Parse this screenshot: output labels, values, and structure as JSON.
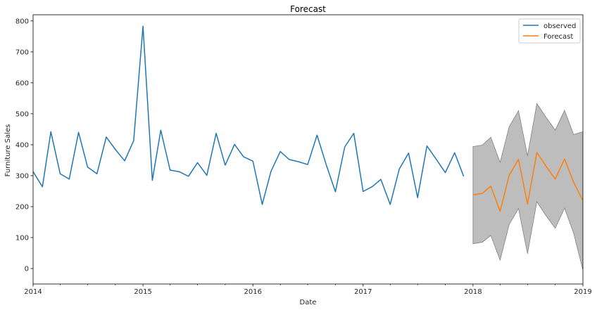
{
  "chart_data": {
    "type": "line",
    "title": "Forecast",
    "xlabel": "Date",
    "ylabel": "Furniture Sales",
    "xlim": [
      "2014-01-01",
      "2019-01-01"
    ],
    "ylim": [
      -50,
      820
    ],
    "x_ticks": [
      "2014",
      "2015",
      "2016",
      "2017",
      "2018",
      "2019"
    ],
    "y_ticks": [
      0,
      100,
      200,
      300,
      400,
      500,
      600,
      700,
      800
    ],
    "grid": false,
    "legend_position": "top-right",
    "colors": {
      "observed": "#1f77b4",
      "forecast": "#ff7f0e",
      "confidence_band": "#bdbdbd",
      "confidence_edge": "#808080"
    },
    "series": [
      {
        "name": "observed",
        "x": [
          "2014-01",
          "2014-02",
          "2014-03",
          "2014-04",
          "2014-05",
          "2014-06",
          "2014-07",
          "2014-08",
          "2014-09",
          "2014-10",
          "2014-11",
          "2014-12",
          "2015-01",
          "2015-02",
          "2015-03",
          "2015-04",
          "2015-05",
          "2015-06",
          "2015-07",
          "2015-08",
          "2015-09",
          "2015-10",
          "2015-11",
          "2015-12",
          "2016-01",
          "2016-02",
          "2016-03",
          "2016-04",
          "2016-05",
          "2016-06",
          "2016-07",
          "2016-08",
          "2016-09",
          "2016-10",
          "2016-11",
          "2016-12",
          "2017-01",
          "2017-02",
          "2017-03",
          "2017-04",
          "2017-05",
          "2017-06",
          "2017-07",
          "2017-08",
          "2017-09",
          "2017-10",
          "2017-11",
          "2017-12"
        ],
        "y": [
          313,
          264,
          442,
          306,
          289,
          440,
          328,
          306,
          425,
          385,
          348,
          413,
          783,
          285,
          447,
          318,
          313,
          298,
          342,
          301,
          437,
          334,
          401,
          361,
          347,
          207,
          314,
          378,
          352,
          345,
          336,
          431,
          334,
          248,
          393,
          437,
          249,
          265,
          288,
          207,
          321,
          373,
          229,
          396,
          353,
          310,
          374,
          298
        ]
      },
      {
        "name": "Forecast",
        "x": [
          "2018-01",
          "2018-02",
          "2018-03",
          "2018-04",
          "2018-05",
          "2018-06",
          "2018-07",
          "2018-08",
          "2018-09",
          "2018-10",
          "2018-11",
          "2018-12",
          "2019-01"
        ],
        "y": [
          238,
          243,
          266,
          185,
          301,
          353,
          208,
          375,
          330,
          289,
          354,
          279,
          219
        ],
        "lower": [
          80,
          85,
          107,
          27,
          142,
          194,
          48,
          216,
          170,
          130,
          195,
          115,
          -5
        ],
        "upper": [
          394,
          399,
          424,
          343,
          458,
          510,
          364,
          533,
          488,
          447,
          511,
          433,
          442
        ]
      }
    ]
  }
}
